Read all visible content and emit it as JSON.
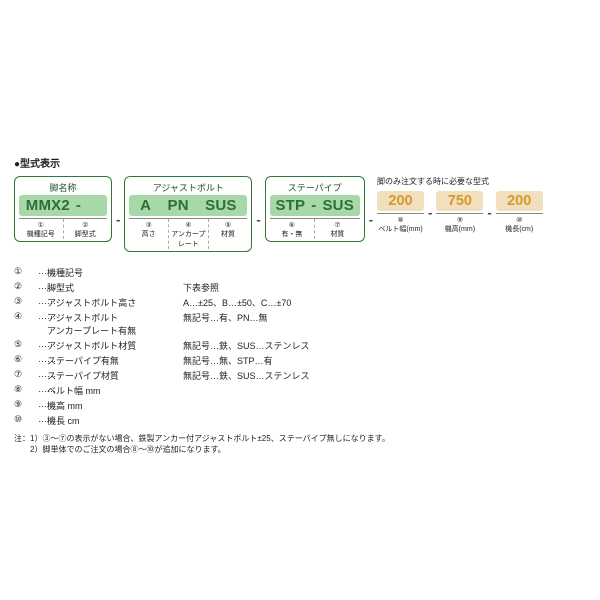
{
  "header": "●型式表示",
  "rightNote": "脚のみ注文する時に必要な型式",
  "boxes": [
    {
      "label": "脚名称",
      "codes": [
        "MMX2",
        "-",
        "",
        ""
      ],
      "subs": [
        {
          "n": "①",
          "t": "機種記号"
        },
        {
          "n": "②",
          "t": "脚型式"
        }
      ]
    },
    {
      "label": "アジャストボルト",
      "codes": [
        "A",
        "",
        "PN",
        "SUS"
      ],
      "subs": [
        {
          "n": "③",
          "t": "高さ"
        },
        {
          "n": "④",
          "t": "アンカープレート"
        },
        {
          "n": "⑤",
          "t": "材質"
        }
      ]
    },
    {
      "label": "ステーパイプ",
      "codes": [
        "STP",
        "-",
        "SUS"
      ],
      "subs": [
        {
          "n": "⑥",
          "t": "有・無"
        },
        {
          "n": "⑦",
          "t": "材質"
        }
      ]
    }
  ],
  "tail": [
    {
      "code": "200",
      "n": "⑧",
      "t": "ベルト幅(mm)"
    },
    {
      "code": "750",
      "n": "⑨",
      "t": "機高(mm)"
    },
    {
      "code": "200",
      "n": "⑩",
      "t": "機長(cm)"
    }
  ],
  "defs": [
    {
      "n": "①",
      "t": "機種記号",
      "v": ""
    },
    {
      "n": "②",
      "t": "脚型式",
      "v": "下表参照"
    },
    {
      "n": "③",
      "t": "アジャストボルト高さ",
      "v": "A…±25、B…±50、C…±70"
    },
    {
      "n": "④",
      "t": "アジャストボルト\nアンカープレート有無",
      "v": "無記号…有、PN…無"
    },
    {
      "n": "⑤",
      "t": "アジャストボルト材質",
      "v": "無記号…鉄、SUS…ステンレス"
    },
    {
      "n": "⑥",
      "t": "ステーパイプ有無",
      "v": "無記号…無、STP…有"
    },
    {
      "n": "⑦",
      "t": "ステーパイプ材質",
      "v": "無記号…鉄、SUS…ステンレス"
    },
    {
      "n": "⑧",
      "t": "ベルト幅 mm",
      "v": ""
    },
    {
      "n": "⑨",
      "t": "機高 mm",
      "v": ""
    },
    {
      "n": "⑩",
      "t": "機長 cm",
      "v": ""
    }
  ],
  "footnote": "注：1）③〜⑦の表示がない場合、鉄製アンカー付アジャストボルト±25、ステーパイプ無しになります。\n　　2）脚単体でのご注文の場合⑧〜⑩が追加になります。"
}
